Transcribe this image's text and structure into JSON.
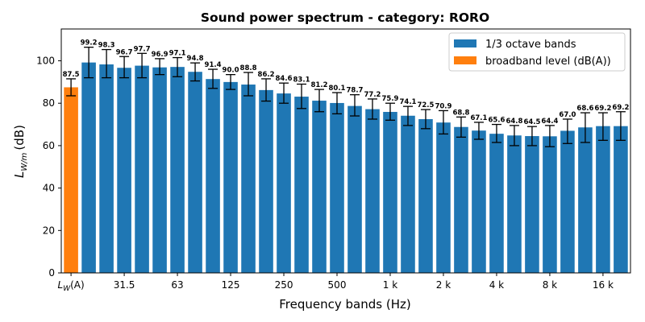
{
  "chart_data": {
    "type": "bar",
    "title": "Sound power spectrum - category: RORO",
    "xlabel": "Frequency bands (Hz)",
    "ylabel": {
      "base": "L",
      "sub": "W/m",
      "unit": "(dB)"
    },
    "ylim": [
      0,
      115
    ],
    "yticks": [
      0,
      20,
      40,
      60,
      80,
      100
    ],
    "xtick_labels": [
      {
        "index": 0,
        "base": "L",
        "sub": "W",
        "suffix": "(A)"
      },
      {
        "index": 3,
        "text": "31.5"
      },
      {
        "index": 6,
        "text": "63"
      },
      {
        "index": 9,
        "text": "125"
      },
      {
        "index": 12,
        "text": "250"
      },
      {
        "index": 15,
        "text": "500"
      },
      {
        "index": 18,
        "text": "1 k"
      },
      {
        "index": 21,
        "text": "2 k"
      },
      {
        "index": 24,
        "text": "4 k"
      },
      {
        "index": 27,
        "text": "8 k"
      },
      {
        "index": 30,
        "text": "16 k"
      }
    ],
    "series": [
      {
        "name": "1/3 octave bands",
        "color": "#1f77b4"
      },
      {
        "name": "broadband level (dB(A))",
        "color": "#ff7f0e"
      }
    ],
    "bars": [
      {
        "value": 87.5,
        "err_low": 83.5,
        "err_high": 91.5,
        "series": 1
      },
      {
        "value": 99.2,
        "err_low": 92.0,
        "err_high": 106.4,
        "series": 0
      },
      {
        "value": 98.3,
        "err_low": 92.0,
        "err_high": 105.3,
        "series": 0
      },
      {
        "value": 96.7,
        "err_low": 92.0,
        "err_high": 102.0,
        "series": 0
      },
      {
        "value": 97.7,
        "err_low": 92.0,
        "err_high": 103.5,
        "series": 0
      },
      {
        "value": 96.9,
        "err_low": 93.5,
        "err_high": 101.0,
        "series": 0
      },
      {
        "value": 97.1,
        "err_low": 92.5,
        "err_high": 101.5,
        "series": 0
      },
      {
        "value": 94.8,
        "err_low": 90.5,
        "err_high": 99.0,
        "series": 0
      },
      {
        "value": 91.4,
        "err_low": 87.0,
        "err_high": 96.0,
        "series": 0
      },
      {
        "value": 90.0,
        "err_low": 86.5,
        "err_high": 93.5,
        "series": 0
      },
      {
        "value": 88.8,
        "err_low": 83.5,
        "err_high": 94.5,
        "series": 0
      },
      {
        "value": 86.2,
        "err_low": 81.0,
        "err_high": 91.5,
        "series": 0
      },
      {
        "value": 84.6,
        "err_low": 80.0,
        "err_high": 89.5,
        "series": 0
      },
      {
        "value": 83.1,
        "err_low": 77.5,
        "err_high": 89.0,
        "series": 0
      },
      {
        "value": 81.2,
        "err_low": 76.0,
        "err_high": 86.5,
        "series": 0
      },
      {
        "value": 80.1,
        "err_low": 75.0,
        "err_high": 85.0,
        "series": 0
      },
      {
        "value": 78.7,
        "err_low": 74.0,
        "err_high": 84.0,
        "series": 0
      },
      {
        "value": 77.2,
        "err_low": 72.5,
        "err_high": 82.0,
        "series": 0
      },
      {
        "value": 75.9,
        "err_low": 72.0,
        "err_high": 80.0,
        "series": 0
      },
      {
        "value": 74.1,
        "err_low": 69.5,
        "err_high": 78.5,
        "series": 0
      },
      {
        "value": 72.5,
        "err_low": 68.0,
        "err_high": 77.0,
        "series": 0
      },
      {
        "value": 70.9,
        "err_low": 65.5,
        "err_high": 76.5,
        "series": 0
      },
      {
        "value": 68.8,
        "err_low": 64.0,
        "err_high": 73.5,
        "series": 0
      },
      {
        "value": 67.1,
        "err_low": 63.0,
        "err_high": 71.0,
        "series": 0
      },
      {
        "value": 65.6,
        "err_low": 61.5,
        "err_high": 70.0,
        "series": 0
      },
      {
        "value": 64.8,
        "err_low": 60.0,
        "err_high": 69.5,
        "series": 0
      },
      {
        "value": 64.5,
        "err_low": 60.0,
        "err_high": 69.0,
        "series": 0
      },
      {
        "value": 64.4,
        "err_low": 59.5,
        "err_high": 69.5,
        "series": 0
      },
      {
        "value": 67.0,
        "err_low": 61.0,
        "err_high": 72.5,
        "series": 0
      },
      {
        "value": 68.6,
        "err_low": 61.5,
        "err_high": 75.5,
        "series": 0
      },
      {
        "value": 69.2,
        "err_low": 62.5,
        "err_high": 75.5,
        "series": 0
      },
      {
        "value": 69.2,
        "err_low": 62.5,
        "err_high": 76.0,
        "series": 0
      }
    ],
    "legend_position": "upper-right"
  }
}
